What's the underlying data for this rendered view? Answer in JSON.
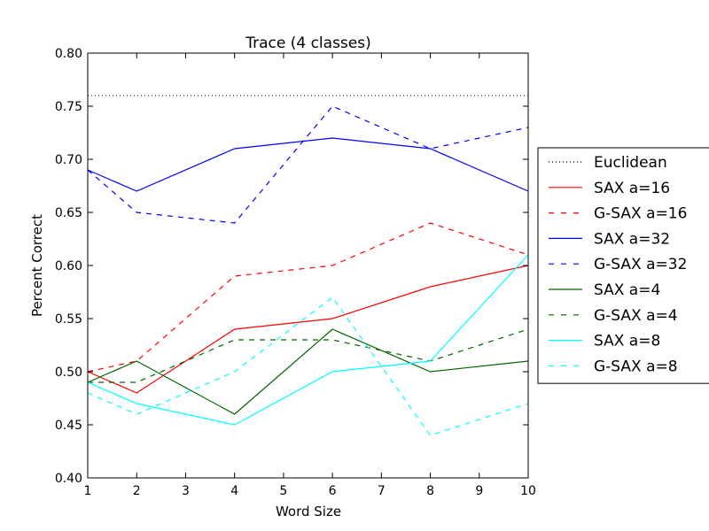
{
  "chart_data": {
    "type": "line",
    "title": "Trace (4 classes)",
    "xlabel": "Word Size",
    "ylabel": "Percent Correct",
    "xlim": [
      1,
      10
    ],
    "ylim": [
      0.4,
      0.8
    ],
    "x_ticks": [
      1,
      2,
      3,
      4,
      5,
      6,
      7,
      8,
      9,
      10
    ],
    "y_ticks": [
      "0.40",
      "0.45",
      "0.50",
      "0.55",
      "0.60",
      "0.65",
      "0.70",
      "0.75",
      "0.80"
    ],
    "grid": false,
    "legend_position": "outside-right",
    "reference_lines": [
      {
        "name": "Euclidean",
        "y": 0.76,
        "color": "#000000",
        "style": "dotted"
      }
    ],
    "series": [
      {
        "name": "SAX a=16",
        "color": "#ff0000",
        "style": "solid",
        "x": [
          1,
          2,
          4,
          6,
          8,
          10
        ],
        "values": [
          0.5,
          0.48,
          0.54,
          0.55,
          0.58,
          0.6
        ]
      },
      {
        "name": "G-SAX a=16",
        "color": "#ff0000",
        "style": "dashed",
        "x": [
          1,
          2,
          4,
          6,
          8,
          10
        ],
        "values": [
          0.5,
          0.51,
          0.59,
          0.6,
          0.64,
          0.61
        ]
      },
      {
        "name": "SAX a=32",
        "color": "#0000ff",
        "style": "solid",
        "x": [
          1,
          2,
          4,
          6,
          8,
          10
        ],
        "values": [
          0.69,
          0.67,
          0.71,
          0.72,
          0.71,
          0.67
        ]
      },
      {
        "name": "G-SAX a=32",
        "color": "#0000ff",
        "style": "dashed",
        "x": [
          1,
          2,
          4,
          6,
          8,
          10
        ],
        "values": [
          0.69,
          0.65,
          0.64,
          0.75,
          0.71,
          0.73
        ]
      },
      {
        "name": "SAX a=4",
        "color": "#006400",
        "style": "solid",
        "x": [
          1,
          2,
          4,
          6,
          8,
          10
        ],
        "values": [
          0.49,
          0.51,
          0.46,
          0.54,
          0.5,
          0.51
        ]
      },
      {
        "name": "G-SAX a=4",
        "color": "#006400",
        "style": "dashed",
        "x": [
          1,
          2,
          4,
          6,
          8,
          10
        ],
        "values": [
          0.49,
          0.49,
          0.53,
          0.53,
          0.51,
          0.54
        ]
      },
      {
        "name": "SAX a=8",
        "color": "#00ffff",
        "style": "solid",
        "x": [
          1,
          2,
          4,
          6,
          8,
          10
        ],
        "values": [
          0.49,
          0.47,
          0.45,
          0.5,
          0.51,
          0.61
        ]
      },
      {
        "name": "G-SAX a=8",
        "color": "#00ffff",
        "style": "dashed",
        "x": [
          1,
          2,
          4,
          6,
          8,
          10
        ],
        "values": [
          0.48,
          0.46,
          0.5,
          0.57,
          0.44,
          0.47
        ]
      }
    ]
  }
}
